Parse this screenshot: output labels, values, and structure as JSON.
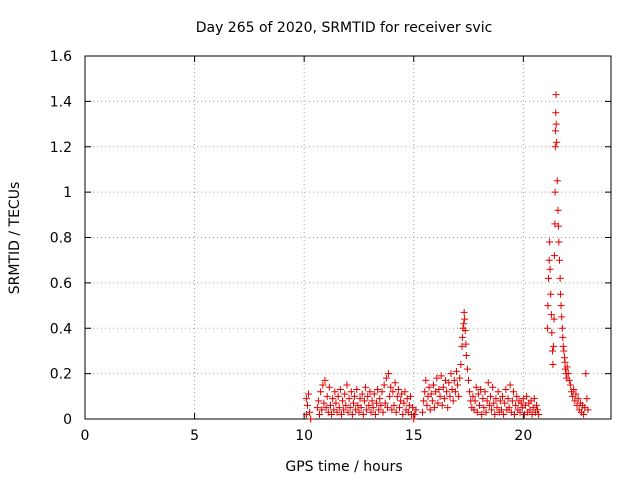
{
  "chart_data": {
    "type": "scatter",
    "title": "Day 265 of 2020, SRMTID for receiver svic",
    "xlabel": "GPS time / hours",
    "ylabel": "SRMTID / TECUs",
    "xlim": [
      0,
      24
    ],
    "ylim": [
      0,
      1.6
    ],
    "xticks": [
      0,
      5,
      10,
      15,
      20
    ],
    "xtick_labels": [
      "0",
      "5",
      "10",
      "15",
      "20"
    ],
    "yticks": [
      0,
      0.2,
      0.4,
      0.6,
      0.8,
      1.0,
      1.2,
      1.4,
      1.6
    ],
    "ytick_labels": [
      "0",
      "0.2",
      "0.4",
      "0.6",
      "0.8",
      "1",
      "1.2",
      "1.4",
      "1.6"
    ],
    "grid": true,
    "marker": "+",
    "marker_color": "#e00000",
    "series": [
      {
        "name": "svic",
        "points": [
          [
            10.1,
            0.02
          ],
          [
            10.1,
            0.09
          ],
          [
            10.15,
            0.06
          ],
          [
            10.2,
            0.11
          ],
          [
            10.25,
            0.03
          ],
          [
            10.3,
            0.0
          ],
          [
            10.6,
            0.05
          ],
          [
            10.65,
            0.08
          ],
          [
            10.7,
            0.02
          ],
          [
            10.75,
            0.12
          ],
          [
            10.8,
            0.04
          ],
          [
            10.85,
            0.15
          ],
          [
            10.9,
            0.07
          ],
          [
            10.95,
            0.17
          ],
          [
            11.0,
            0.05
          ],
          [
            11.05,
            0.1
          ],
          [
            11.1,
            0.03
          ],
          [
            11.15,
            0.14
          ],
          [
            11.2,
            0.06
          ],
          [
            11.25,
            0.02
          ],
          [
            11.3,
            0.09
          ],
          [
            11.35,
            0.04
          ],
          [
            11.4,
            0.12
          ],
          [
            11.45,
            0.07
          ],
          [
            11.5,
            0.03
          ],
          [
            11.55,
            0.1
          ],
          [
            11.6,
            0.05
          ],
          [
            11.65,
            0.13
          ],
          [
            11.7,
            0.02
          ],
          [
            11.75,
            0.08
          ],
          [
            11.8,
            0.04
          ],
          [
            11.85,
            0.11
          ],
          [
            11.9,
            0.06
          ],
          [
            11.95,
            0.15
          ],
          [
            12.0,
            0.03
          ],
          [
            12.05,
            0.09
          ],
          [
            12.1,
            0.05
          ],
          [
            12.15,
            0.12
          ],
          [
            12.2,
            0.02
          ],
          [
            12.25,
            0.07
          ],
          [
            12.3,
            0.1
          ],
          [
            12.35,
            0.04
          ],
          [
            12.4,
            0.13
          ],
          [
            12.45,
            0.06
          ],
          [
            12.5,
            0.03
          ],
          [
            12.55,
            0.09
          ],
          [
            12.6,
            0.05
          ],
          [
            12.65,
            0.11
          ],
          [
            12.7,
            0.02
          ],
          [
            12.75,
            0.08
          ],
          [
            12.8,
            0.14
          ],
          [
            12.85,
            0.04
          ],
          [
            12.9,
            0.1
          ],
          [
            12.95,
            0.06
          ],
          [
            13.0,
            0.12
          ],
          [
            13.05,
            0.03
          ],
          [
            13.1,
            0.08
          ],
          [
            13.15,
            0.05
          ],
          [
            13.2,
            0.11
          ],
          [
            13.25,
            0.02
          ],
          [
            13.3,
            0.07
          ],
          [
            13.35,
            0.13
          ],
          [
            13.4,
            0.04
          ],
          [
            13.45,
            0.09
          ],
          [
            13.5,
            0.06
          ],
          [
            13.55,
            0.12
          ],
          [
            13.6,
            0.03
          ],
          [
            13.65,
            0.15
          ],
          [
            13.7,
            0.07
          ],
          [
            13.75,
            0.18
          ],
          [
            13.8,
            0.05
          ],
          [
            13.85,
            0.2
          ],
          [
            13.9,
            0.1
          ],
          [
            13.95,
            0.14
          ],
          [
            14.0,
            0.04
          ],
          [
            14.05,
            0.12
          ],
          [
            14.1,
            0.06
          ],
          [
            14.15,
            0.16
          ],
          [
            14.2,
            0.03
          ],
          [
            14.25,
            0.1
          ],
          [
            14.3,
            0.13
          ],
          [
            14.35,
            0.05
          ],
          [
            14.4,
            0.08
          ],
          [
            14.45,
            0.11
          ],
          [
            14.5,
            0.02
          ],
          [
            14.55,
            0.07
          ],
          [
            14.6,
            0.12
          ],
          [
            14.65,
            0.04
          ],
          [
            14.7,
            0.09
          ],
          [
            14.75,
            0.03
          ],
          [
            14.8,
            0.06
          ],
          [
            14.85,
            0.1
          ],
          [
            14.9,
            0.02
          ],
          [
            14.95,
            0.05
          ],
          [
            15.0,
            0.0
          ],
          [
            15.05,
            0.02
          ],
          [
            15.1,
            0.04
          ],
          [
            15.4,
            0.03
          ],
          [
            15.45,
            0.08
          ],
          [
            15.5,
            0.12
          ],
          [
            15.55,
            0.17
          ],
          [
            15.6,
            0.06
          ],
          [
            15.65,
            0.1
          ],
          [
            15.7,
            0.14
          ],
          [
            15.75,
            0.04
          ],
          [
            15.8,
            0.11
          ],
          [
            15.85,
            0.08
          ],
          [
            15.9,
            0.15
          ],
          [
            15.95,
            0.05
          ],
          [
            16.0,
            0.12
          ],
          [
            16.05,
            0.18
          ],
          [
            16.1,
            0.07
          ],
          [
            16.15,
            0.13
          ],
          [
            16.2,
            0.1
          ],
          [
            16.25,
            0.19
          ],
          [
            16.3,
            0.06
          ],
          [
            16.35,
            0.14
          ],
          [
            16.4,
            0.09
          ],
          [
            16.45,
            0.17
          ],
          [
            16.5,
            0.12
          ],
          [
            16.55,
            0.05
          ],
          [
            16.6,
            0.16
          ],
          [
            16.65,
            0.1
          ],
          [
            16.7,
            0.2
          ],
          [
            16.75,
            0.13
          ],
          [
            16.8,
            0.08
          ],
          [
            16.85,
            0.17
          ],
          [
            16.9,
            0.12
          ],
          [
            16.95,
            0.21
          ],
          [
            17.0,
            0.15
          ],
          [
            17.05,
            0.1
          ],
          [
            17.1,
            0.18
          ],
          [
            17.15,
            0.24
          ],
          [
            17.2,
            0.32
          ],
          [
            17.22,
            0.36
          ],
          [
            17.25,
            0.4
          ],
          [
            17.28,
            0.42
          ],
          [
            17.3,
            0.47
          ],
          [
            17.32,
            0.44
          ],
          [
            17.35,
            0.39
          ],
          [
            17.38,
            0.33
          ],
          [
            17.4,
            0.28
          ],
          [
            17.45,
            0.22
          ],
          [
            17.5,
            0.17
          ],
          [
            17.55,
            0.12
          ],
          [
            17.6,
            0.08
          ],
          [
            17.65,
            0.05
          ],
          [
            17.7,
            0.1
          ],
          [
            17.75,
            0.04
          ],
          [
            17.8,
            0.08
          ],
          [
            17.85,
            0.14
          ],
          [
            17.9,
            0.03
          ],
          [
            17.95,
            0.11
          ],
          [
            18.0,
            0.06
          ],
          [
            18.05,
            0.13
          ],
          [
            18.1,
            0.02
          ],
          [
            18.15,
            0.09
          ],
          [
            18.2,
            0.05
          ],
          [
            18.25,
            0.12
          ],
          [
            18.3,
            0.03
          ],
          [
            18.35,
            0.08
          ],
          [
            18.4,
            0.16
          ],
          [
            18.45,
            0.06
          ],
          [
            18.5,
            0.1
          ],
          [
            18.55,
            0.04
          ],
          [
            18.6,
            0.14
          ],
          [
            18.65,
            0.07
          ],
          [
            18.7,
            0.02
          ],
          [
            18.75,
            0.09
          ],
          [
            18.8,
            0.05
          ],
          [
            18.85,
            0.12
          ],
          [
            18.9,
            0.03
          ],
          [
            18.95,
            0.08
          ],
          [
            19.0,
            0.04
          ],
          [
            19.05,
            0.1
          ],
          [
            19.1,
            0.02
          ],
          [
            19.15,
            0.07
          ],
          [
            19.2,
            0.13
          ],
          [
            19.25,
            0.04
          ],
          [
            19.3,
            0.09
          ],
          [
            19.35,
            0.05
          ],
          [
            19.4,
            0.15
          ],
          [
            19.45,
            0.03
          ],
          [
            19.5,
            0.08
          ],
          [
            19.55,
            0.12
          ],
          [
            19.6,
            0.02
          ],
          [
            19.65,
            0.06
          ],
          [
            19.7,
            0.1
          ],
          [
            19.75,
            0.04
          ],
          [
            19.8,
            0.08
          ],
          [
            19.85,
            0.03
          ],
          [
            19.9,
            0.07
          ],
          [
            19.95,
            0.05
          ],
          [
            20.0,
            0.09
          ],
          [
            20.05,
            0.02
          ],
          [
            20.1,
            0.06
          ],
          [
            20.15,
            0.1
          ],
          [
            20.2,
            0.03
          ],
          [
            20.25,
            0.07
          ],
          [
            20.3,
            0.04
          ],
          [
            20.35,
            0.08
          ],
          [
            20.4,
            0.02
          ],
          [
            20.45,
            0.05
          ],
          [
            20.5,
            0.09
          ],
          [
            20.55,
            0.03
          ],
          [
            20.6,
            0.06
          ],
          [
            20.65,
            0.04
          ],
          [
            20.7,
            0.02
          ],
          [
            21.1,
            0.4
          ],
          [
            21.12,
            0.5
          ],
          [
            21.15,
            0.62
          ],
          [
            21.18,
            0.7
          ],
          [
            21.2,
            0.78
          ],
          [
            21.22,
            0.66
          ],
          [
            21.25,
            0.55
          ],
          [
            21.28,
            0.46
          ],
          [
            21.3,
            0.38
          ],
          [
            21.33,
            0.3
          ],
          [
            21.35,
            0.24
          ],
          [
            21.38,
            0.32
          ],
          [
            21.4,
            0.44
          ],
          [
            21.42,
            0.72
          ],
          [
            21.44,
            0.86
          ],
          [
            21.45,
            1.0
          ],
          [
            21.46,
            1.2
          ],
          [
            21.47,
            1.27
          ],
          [
            21.48,
            1.35
          ],
          [
            21.49,
            1.43
          ],
          [
            21.5,
            1.3
          ],
          [
            21.52,
            1.22
          ],
          [
            21.55,
            1.05
          ],
          [
            21.58,
            0.92
          ],
          [
            21.6,
            0.85
          ],
          [
            21.62,
            0.78
          ],
          [
            21.65,
            0.7
          ],
          [
            21.68,
            0.62
          ],
          [
            21.7,
            0.55
          ],
          [
            21.72,
            0.5
          ],
          [
            21.75,
            0.45
          ],
          [
            21.78,
            0.4
          ],
          [
            21.8,
            0.36
          ],
          [
            21.82,
            0.32
          ],
          [
            21.85,
            0.3
          ],
          [
            21.88,
            0.27
          ],
          [
            21.9,
            0.25
          ],
          [
            21.92,
            0.22
          ],
          [
            21.95,
            0.2
          ],
          [
            21.98,
            0.18
          ],
          [
            22.0,
            0.23
          ],
          [
            22.05,
            0.2
          ],
          [
            22.1,
            0.17
          ],
          [
            22.15,
            0.15
          ],
          [
            22.2,
            0.12
          ],
          [
            22.25,
            0.1
          ],
          [
            22.3,
            0.13
          ],
          [
            22.35,
            0.08
          ],
          [
            22.4,
            0.11
          ],
          [
            22.45,
            0.06
          ],
          [
            22.5,
            0.09
          ],
          [
            22.55,
            0.04
          ],
          [
            22.6,
            0.07
          ],
          [
            22.65,
            0.03
          ],
          [
            22.7,
            0.06
          ],
          [
            22.75,
            0.02
          ],
          [
            22.8,
            0.05
          ],
          [
            22.85,
            0.2
          ],
          [
            22.9,
            0.09
          ],
          [
            22.95,
            0.04
          ]
        ]
      }
    ]
  }
}
